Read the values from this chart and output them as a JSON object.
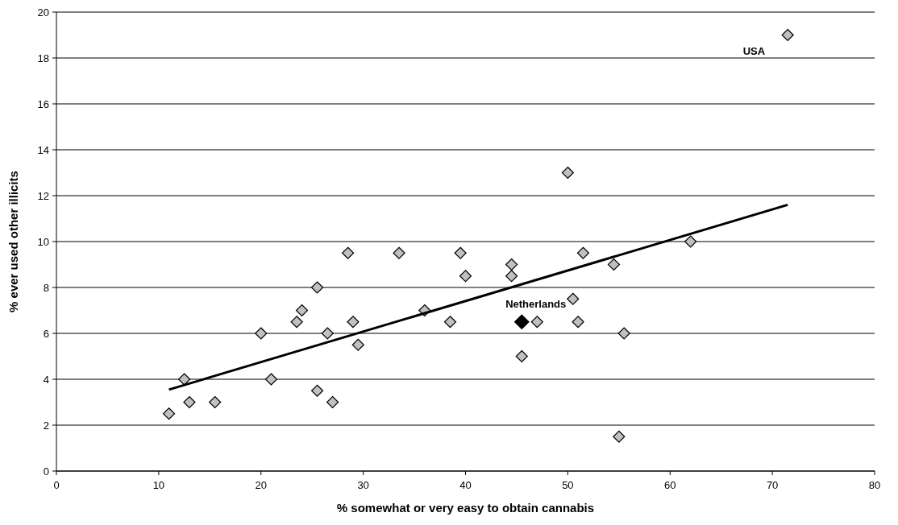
{
  "chart_data": {
    "type": "scatter",
    "xlabel": "% somewhat or very easy to obtain cannabis",
    "ylabel": "% ever used other illicits",
    "xlim": [
      0,
      80
    ],
    "xticks": [
      0,
      10,
      20,
      30,
      40,
      50,
      60,
      70,
      80
    ],
    "ylim": [
      0,
      20
    ],
    "yticks": [
      0,
      2,
      4,
      6,
      8,
      10,
      12,
      14,
      16,
      18,
      20
    ],
    "grid": "y",
    "marker": "diamond",
    "series": [
      {
        "color": "#c0c0c0",
        "x": [
          11,
          12.5,
          13,
          15.5,
          20,
          21,
          23.5,
          24,
          25.5,
          25.5,
          26.5,
          27,
          28.5,
          29,
          29.5,
          33.5,
          36,
          38.5,
          39.5,
          40,
          44.5,
          44.5,
          45.5,
          47,
          50,
          50.5,
          51,
          51.5,
          54.5,
          55,
          55.5,
          62,
          71.5
        ],
        "values": [
          2.5,
          4,
          3,
          3,
          6,
          4,
          6.5,
          7,
          8,
          3.5,
          6,
          3,
          9.5,
          6.5,
          5.5,
          9.5,
          7,
          6.5,
          9.5,
          8.5,
          9,
          8.5,
          5,
          6.5,
          13,
          7.5,
          6.5,
          9.5,
          9,
          1.5,
          6,
          10,
          19
        ]
      },
      {
        "color": "#000000",
        "x": [
          45.5
        ],
        "values": [
          6.5
        ]
      },
      {
        "type": "line",
        "color": "#000000",
        "marker": "none",
        "x": [
          11,
          71.5
        ],
        "values": [
          3.55,
          11.6
        ]
      }
    ],
    "annotations": [
      {
        "text": "USA",
        "x": 71.5,
        "y": 19
      },
      {
        "text": "Netherlands",
        "x": 45.5,
        "y": 6.5
      }
    ]
  }
}
